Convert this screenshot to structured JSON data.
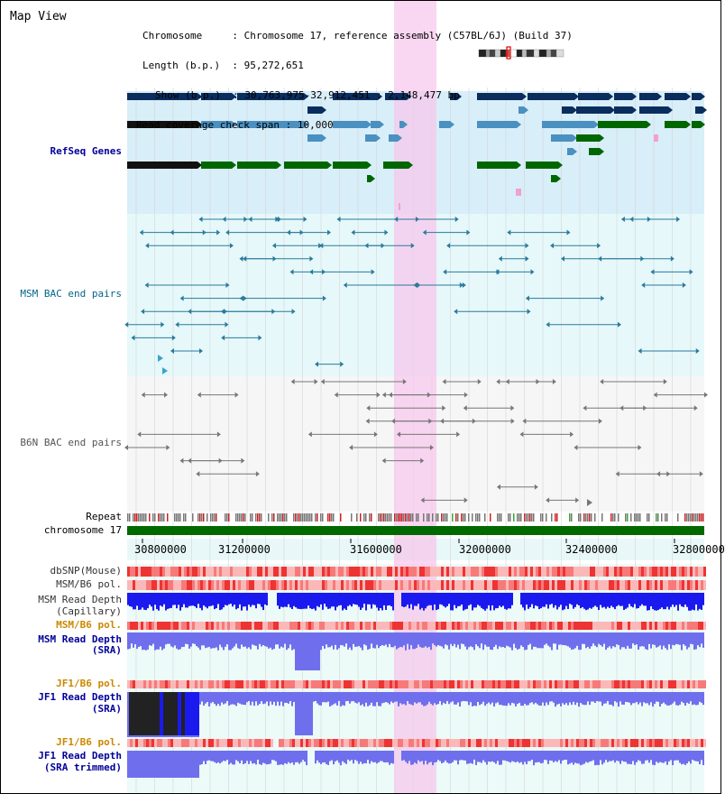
{
  "title": "Map View",
  "info": {
    "rows": [
      {
        "key": "Chromosome",
        "value": "Chromosome 17, reference assembly (C57BL/6J) (Build 37)"
      },
      {
        "key": "Length (b.p.)",
        "value": "95,272,651"
      },
      {
        "key": "Show (b.p.)",
        "value": "30,763,975-32,912,451 : 2,148,477 bp"
      },
      {
        "key": "Read coverage check span",
        "value": "10,000"
      }
    ]
  },
  "tracks": {
    "refseq": "RefSeq Genes",
    "msm_bac": "MSM BAC end pairs",
    "b6n_bac": "B6N BAC end pairs",
    "repeat": "Repeat",
    "chromosome": "chromosome 17",
    "dbsnp": "dbSNP(Mouse)",
    "msm_b6_pol_1": "MSM/B6 pol.",
    "msm_depth_cap_1": "MSM Read Depth",
    "msm_depth_cap_2": "(Capillary)",
    "msm_b6_pol_2": "MSM/B6 pol.",
    "msm_depth_sra_1": "MSM Read Depth",
    "msm_depth_sra_2": "(SRA)",
    "jf1_b6_pol_1": "JF1/B6 pol.",
    "jf1_depth_sra_1": "JF1 Read Depth",
    "jf1_depth_sra_2": "(SRA)",
    "jf1_b6_pol_2": "JF1/B6 pol.",
    "jf1_trim_1": "JF1 Read Depth",
    "jf1_trim_2": "(SRA trimmed)"
  },
  "axis": {
    "ticks": [
      "30800000",
      "31200000",
      "31600000",
      "32000000",
      "32400000",
      "32800000"
    ]
  },
  "colors": {
    "refseq_dark": "#0b2d5e",
    "refseq_mid": "#4a90c0",
    "refseq_green": "#006600",
    "msm_line": "#2a7a9a",
    "b6n_line": "#777777",
    "highlight": "#f7c8ec",
    "chromosome_bar": "#006a00",
    "depth_blue": "#1a1aee",
    "depth_light_blue": "#6f6fee",
    "pol_red": "#ee4444",
    "label_blue": "#000099",
    "label_orange": "#cc8800",
    "label_teal": "#006688"
  }
}
